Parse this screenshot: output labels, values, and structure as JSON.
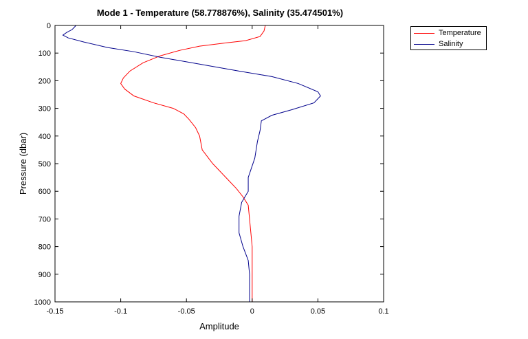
{
  "chart_data": {
    "type": "line",
    "title": "Mode 1 - Temperature (58.778876%), Salinity (35.474501%)",
    "xlabel": "Amplitude",
    "ylabel": "Pressure (dbar)",
    "xlim": [
      -0.15,
      0.1
    ],
    "ylim": [
      0,
      1000
    ],
    "y_reversed": true,
    "x_ticks": [
      -0.15,
      -0.1,
      -0.05,
      0,
      0.05,
      0.1
    ],
    "x_tick_labels": [
      "-0.15",
      "-0.1",
      "-0.05",
      "0",
      "0.05",
      "0.1"
    ],
    "y_ticks": [
      0,
      100,
      200,
      300,
      400,
      500,
      600,
      700,
      800,
      900,
      1000
    ],
    "y_tick_labels": [
      "0",
      "100",
      "200",
      "300",
      "400",
      "500",
      "600",
      "700",
      "800",
      "900",
      "1000"
    ],
    "grid": false,
    "legend_position": "outside-top-right",
    "series": [
      {
        "name": "Temperature",
        "color": "#ff0000",
        "points": [
          [
            0.01,
            0
          ],
          [
            0.009,
            20
          ],
          [
            0.006,
            40
          ],
          [
            -0.005,
            55
          ],
          [
            -0.02,
            63
          ],
          [
            -0.04,
            75
          ],
          [
            -0.055,
            90
          ],
          [
            -0.07,
            110
          ],
          [
            -0.083,
            135
          ],
          [
            -0.093,
            165
          ],
          [
            -0.098,
            190
          ],
          [
            -0.1,
            210
          ],
          [
            -0.097,
            230
          ],
          [
            -0.09,
            255
          ],
          [
            -0.075,
            280
          ],
          [
            -0.06,
            300
          ],
          [
            -0.052,
            320
          ],
          [
            -0.048,
            340
          ],
          [
            -0.043,
            370
          ],
          [
            -0.04,
            400
          ],
          [
            -0.038,
            450
          ],
          [
            -0.03,
            500
          ],
          [
            -0.02,
            550
          ],
          [
            -0.012,
            590
          ],
          [
            -0.007,
            620
          ],
          [
            -0.003,
            650
          ],
          [
            -0.002,
            700
          ],
          [
            -0.001,
            750
          ],
          [
            0.0,
            800
          ],
          [
            0.0,
            900
          ],
          [
            0.0,
            1000
          ]
        ]
      },
      {
        "name": "Salinity",
        "color": "#00008b",
        "points": [
          [
            -0.134,
            0
          ],
          [
            -0.137,
            15
          ],
          [
            -0.141,
            25
          ],
          [
            -0.144,
            35
          ],
          [
            -0.14,
            45
          ],
          [
            -0.128,
            60
          ],
          [
            -0.11,
            80
          ],
          [
            -0.09,
            95
          ],
          [
            -0.07,
            115
          ],
          [
            -0.04,
            140
          ],
          [
            -0.01,
            165
          ],
          [
            0.015,
            185
          ],
          [
            0.035,
            210
          ],
          [
            0.05,
            240
          ],
          [
            0.052,
            255
          ],
          [
            0.047,
            280
          ],
          [
            0.03,
            305
          ],
          [
            0.015,
            325
          ],
          [
            0.007,
            345
          ],
          [
            0.006,
            380
          ],
          [
            0.004,
            420
          ],
          [
            0.002,
            480
          ],
          [
            -0.003,
            550
          ],
          [
            -0.003,
            600
          ],
          [
            -0.008,
            640
          ],
          [
            -0.01,
            690
          ],
          [
            -0.01,
            750
          ],
          [
            -0.007,
            800
          ],
          [
            -0.003,
            850
          ],
          [
            -0.002,
            900
          ],
          [
            -0.002,
            1000
          ]
        ]
      }
    ]
  }
}
